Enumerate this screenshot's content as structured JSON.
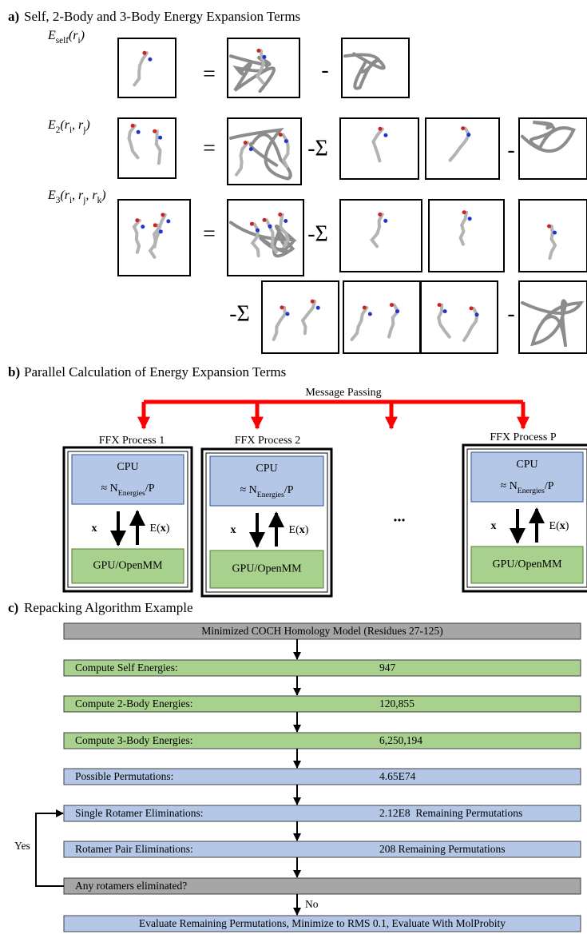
{
  "panel_a": {
    "label": "a)",
    "title": "Self, 2-Body and 3-Body Energy Expansion Terms",
    "terms": [
      [
        {
          "t": "E"
        },
        {
          "t": "self",
          "sub": true
        },
        {
          "t": "("
        },
        {
          "t": "r"
        },
        {
          "t": "i",
          "sub": true
        },
        {
          "t": ")"
        }
      ],
      [
        {
          "t": "E"
        },
        {
          "t": "2",
          "sub": true
        },
        {
          "t": "("
        },
        {
          "t": "r"
        },
        {
          "t": "i",
          "sub": true
        },
        {
          "t": ", r"
        },
        {
          "t": "j",
          "sub": true
        },
        {
          "t": ")"
        }
      ],
      [
        {
          "t": "E"
        },
        {
          "t": "3",
          "sub": true
        },
        {
          "t": "("
        },
        {
          "t": "r"
        },
        {
          "t": "i",
          "sub": true
        },
        {
          "t": ", r"
        },
        {
          "t": "j",
          "sub": true
        },
        {
          "t": ", r"
        },
        {
          "t": "k",
          "sub": true
        },
        {
          "t": ")"
        }
      ]
    ],
    "ops": [
      [
        "=",
        "-"
      ],
      [
        "=",
        "-Σ",
        "-"
      ],
      [
        "=",
        "-Σ"
      ],
      [
        "-Σ",
        "-"
      ]
    ]
  },
  "panel_b": {
    "label": "b)",
    "title": "Parallel Calculation of Energy Expansion Terms",
    "message": "Message Passing",
    "processes": [
      "FFX Process 1",
      "FFX Process 2",
      "FFX Process P"
    ],
    "ellipsis": "...",
    "cpu": "CPU",
    "share": [
      {
        "t": "≈ N"
      },
      {
        "t": "Energies",
        "sub": true
      },
      {
        "t": "/P"
      }
    ],
    "down_label": "x",
    "up_label": [
      {
        "t": "E("
      },
      {
        "t": "x",
        "bold": true
      },
      {
        "t": ")"
      }
    ],
    "gpu": "GPU/OpenMM"
  },
  "panel_c": {
    "label": "c)",
    "title": "Repacking Algorithm Example",
    "steps": [
      {
        "label": "Minimized COCH Homology Model (Residues 27-125)",
        "color": "#a6a6a6"
      },
      {
        "label": "Compute Self Energies:",
        "value": "947",
        "color": "#a9d18e"
      },
      {
        "label": "Compute 2-Body Energies:",
        "value": "120,855",
        "color": "#a9d18e"
      },
      {
        "label": "Compute 3-Body Energies:",
        "value": "6,250,194",
        "color": "#a9d18e"
      },
      {
        "label": "Possible Permutations:",
        "value": "4.65E74",
        "color": "#b4c7e7"
      },
      {
        "label": "Single Rotamer Eliminations:",
        "value": "2.12E8  Remaining Permutations",
        "color": "#b4c7e7"
      },
      {
        "label": "Rotamer Pair Eliminations:",
        "value": "208 Remaining Permutations",
        "color": "#b4c7e7"
      },
      {
        "label": "Any rotamers eliminated?",
        "color": "#a6a6a6"
      },
      {
        "label": "Evaluate Remaining Permutations, Minimize to RMS 0.1, Evaluate With MolProbity",
        "color": "#b4c7e7"
      }
    ],
    "yes": "Yes",
    "no": "No"
  }
}
